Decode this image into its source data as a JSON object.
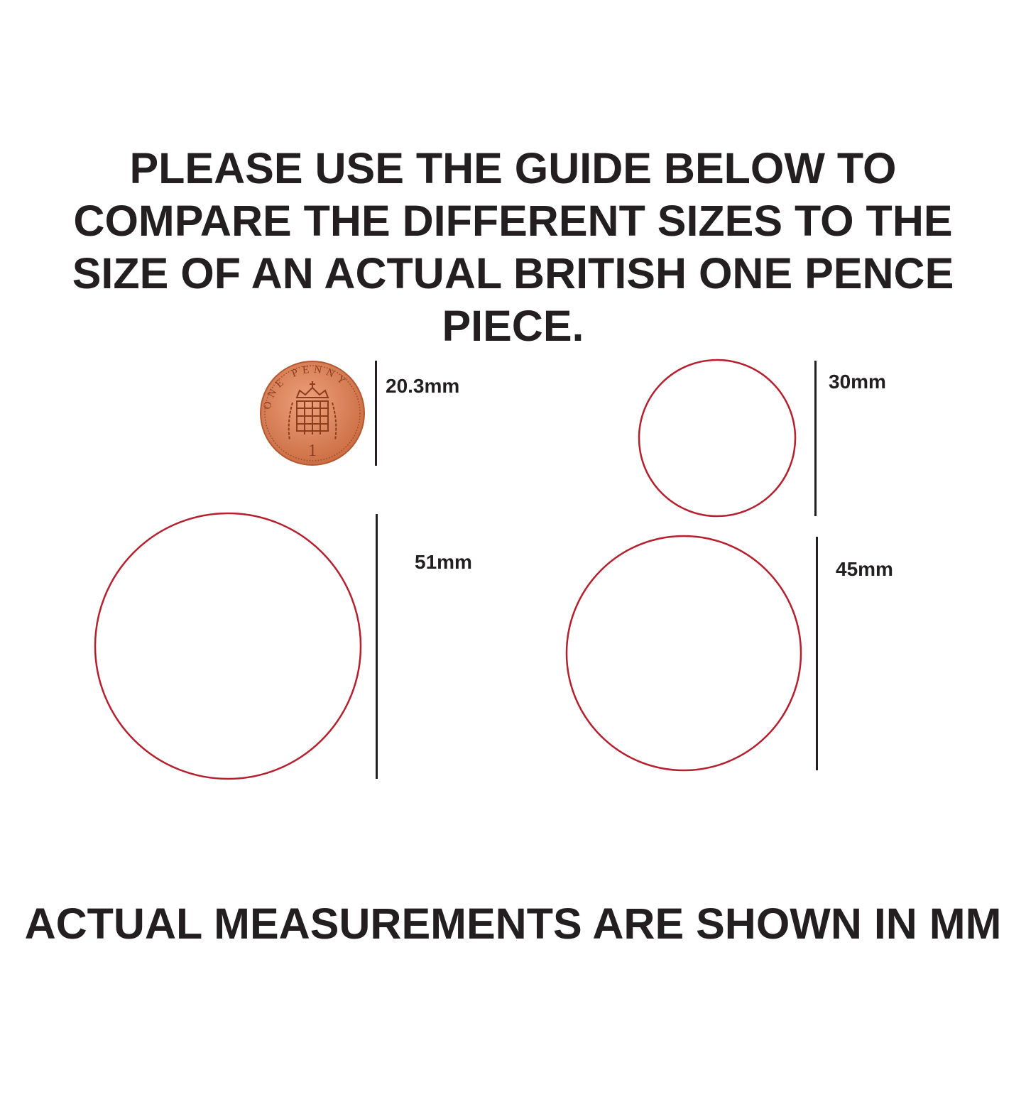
{
  "heading": {
    "lines": [
      "PLEASE USE THE GUIDE BELOW TO",
      "COMPARE THE DIFFERENT SIZES TO THE",
      "SIZE OF AN ACTUAL BRITISH ONE PENCE",
      "PIECE."
    ]
  },
  "coin": {
    "label": "20.3mm",
    "inscription": "ONE PENNY",
    "denomination": "1",
    "color": "#d9825a"
  },
  "circles": [
    {
      "label": "30mm",
      "diameter_mm": 30
    },
    {
      "label": "51mm",
      "diameter_mm": 51
    },
    {
      "label": "45mm",
      "diameter_mm": 45
    }
  ],
  "circle_color": "#b5202e",
  "footer": "ACTUAL MEASUREMENTS ARE SHOWN IN MM"
}
